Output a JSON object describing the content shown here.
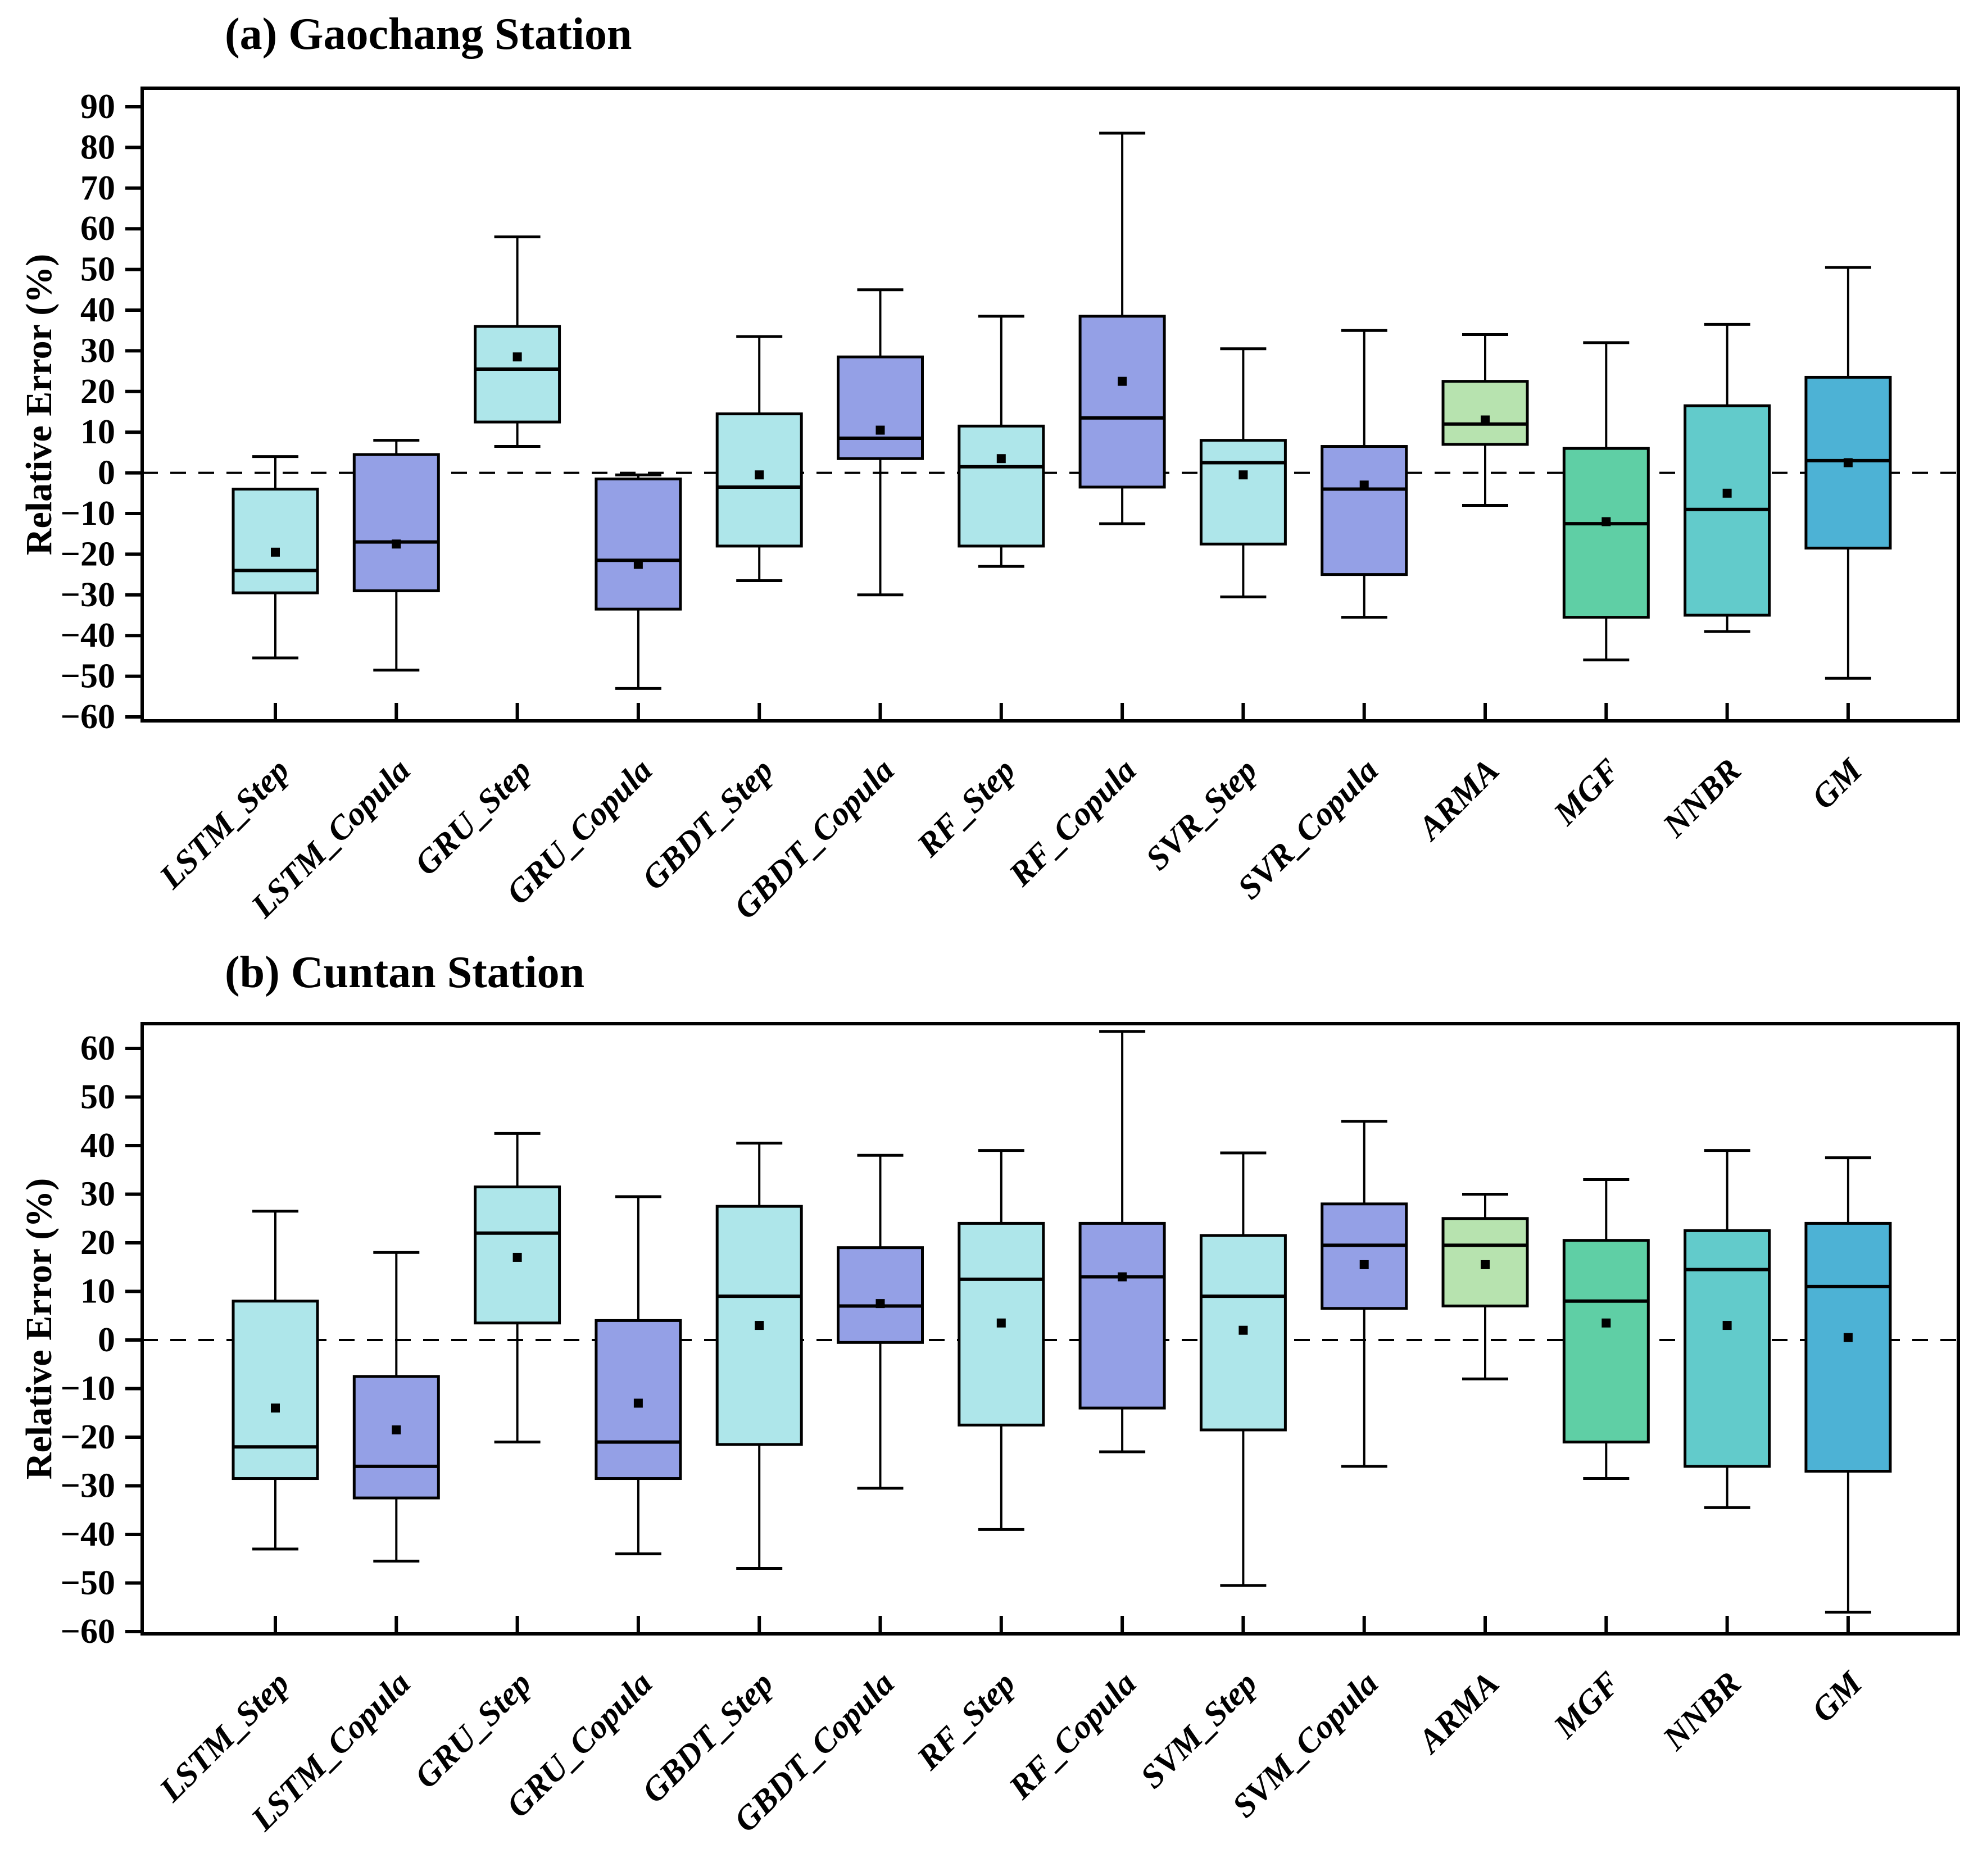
{
  "figure": {
    "background": "#ffffff",
    "axis_color": "#000000",
    "zero_line_style": "dashed",
    "mean_marker": "black-square",
    "panel_a_title": "(a) Gaochang Station",
    "panel_b_title": "(b) Cuntan Station",
    "y_axis_title": "Relative Error (%)"
  },
  "chart_data": [
    {
      "type": "box",
      "title": "(a) Gaochang Station",
      "ylabel": "Relative Error (%)",
      "ylim": [
        -60,
        90
      ],
      "ytick_step": 10,
      "grid": false,
      "zero_line": "dashed",
      "legend": "none",
      "categories": [
        "LSTM_Step",
        "LSTM_Copula",
        "GRU_Step",
        "GRU_Copula",
        "GBDT_Step",
        "GBDT_Copula",
        "RF_Step",
        "RF_Copula",
        "SVR_Step",
        "SVR_Copula",
        "ARMA",
        "MGF",
        "NNBR",
        "GM"
      ],
      "boxes": [
        {
          "label": "LSTM_Step",
          "color": "#AEE6EA",
          "whisker_low": -45.5,
          "q1": -29.5,
          "median": -24,
          "mean": -19.5,
          "q3": -4,
          "whisker_high": 4
        },
        {
          "label": "LSTM_Copula",
          "color": "#94A0E6",
          "whisker_low": -48.5,
          "q1": -29,
          "median": -17,
          "mean": -17.5,
          "q3": 4.5,
          "whisker_high": 8
        },
        {
          "label": "GRU_Step",
          "color": "#AEE6EA",
          "whisker_low": 6.5,
          "q1": 12.5,
          "median": 25.5,
          "mean": 28.5,
          "q3": 36,
          "whisker_high": 58
        },
        {
          "label": "GRU_Copula",
          "color": "#94A0E6",
          "whisker_low": -53,
          "q1": -33.5,
          "median": -21.5,
          "mean": -22.5,
          "q3": -1.5,
          "whisker_high": -0.5
        },
        {
          "label": "GBDT_Step",
          "color": "#AEE6EA",
          "whisker_low": -26.5,
          "q1": -18,
          "median": -3.5,
          "mean": -0.5,
          "q3": 14.5,
          "whisker_high": 33.5
        },
        {
          "label": "GBDT_Copula",
          "color": "#94A0E6",
          "whisker_low": -30,
          "q1": 3.5,
          "median": 8.5,
          "mean": 10.5,
          "q3": 28.5,
          "whisker_high": 45
        },
        {
          "label": "RF_Step",
          "color": "#AEE6EA",
          "whisker_low": -23,
          "q1": -18,
          "median": 1.5,
          "mean": 3.5,
          "q3": 11.5,
          "whisker_high": 38.5
        },
        {
          "label": "RF_Copula",
          "color": "#94A0E6",
          "whisker_low": -12.5,
          "q1": -3.5,
          "median": 13.5,
          "mean": 22.5,
          "q3": 38.5,
          "whisker_high": 83.5
        },
        {
          "label": "SVR_Step",
          "color": "#AEE6EA",
          "whisker_low": -30.5,
          "q1": -17.5,
          "median": 2.5,
          "mean": -0.5,
          "q3": 8,
          "whisker_high": 30.5
        },
        {
          "label": "SVR_Copula",
          "color": "#94A0E6",
          "whisker_low": -35.5,
          "q1": -25,
          "median": -4,
          "mean": -3,
          "q3": 6.5,
          "whisker_high": 35
        },
        {
          "label": "ARMA",
          "color": "#B7E3AF",
          "whisker_low": -8,
          "q1": 7,
          "median": 12,
          "mean": 13,
          "q3": 22.5,
          "whisker_high": 34
        },
        {
          "label": "MGF",
          "color": "#5FCFA5",
          "whisker_low": -46,
          "q1": -35.5,
          "median": -12.5,
          "mean": -12,
          "q3": 6,
          "whisker_high": 32
        },
        {
          "label": "NNBR",
          "color": "#62CBCB",
          "whisker_low": -39,
          "q1": -35,
          "median": -9,
          "mean": -5,
          "q3": 16.5,
          "whisker_high": 36.5
        },
        {
          "label": "GM",
          "color": "#4DB2D5",
          "whisker_low": -50.5,
          "q1": -18.5,
          "median": 3,
          "mean": 2.5,
          "q3": 23.5,
          "whisker_high": 50.5
        }
      ]
    },
    {
      "type": "box",
      "title": "(b) Cuntan Station",
      "ylabel": "Relative Error (%)",
      "ylim": [
        -60,
        60
      ],
      "ytick_step": 10,
      "grid": false,
      "zero_line": "dashed",
      "legend": "none",
      "categories": [
        "LSTM_Step",
        "LSTM_Copula",
        "GRU_Step",
        "GRU_Copula",
        "GBDT_Step",
        "GBDT_Copula",
        "RF_Step",
        "RF_Copula",
        "SVM_Step",
        "SVM_Copula",
        "ARMA",
        "MGF",
        "NNBR",
        "GM"
      ],
      "boxes": [
        {
          "label": "LSTM_Step",
          "color": "#AEE6EA",
          "whisker_low": -43,
          "q1": -28.5,
          "median": -22,
          "mean": -14,
          "q3": 8,
          "whisker_high": 26.5
        },
        {
          "label": "LSTM_Copula",
          "color": "#94A0E6",
          "whisker_low": -45.5,
          "q1": -32.5,
          "median": -26,
          "mean": -18.5,
          "q3": -7.5,
          "whisker_high": 18
        },
        {
          "label": "GRU_Step",
          "color": "#AEE6EA",
          "whisker_low": -21,
          "q1": 3.5,
          "median": 22,
          "mean": 17,
          "q3": 31.5,
          "whisker_high": 42.5
        },
        {
          "label": "GRU_Copula",
          "color": "#94A0E6",
          "whisker_low": -44,
          "q1": -28.5,
          "median": -21,
          "mean": -13,
          "q3": 4,
          "whisker_high": 29.5
        },
        {
          "label": "GBDT_Step",
          "color": "#AEE6EA",
          "whisker_low": -47,
          "q1": -21.5,
          "median": 9,
          "mean": 3,
          "q3": 27.5,
          "whisker_high": 40.5
        },
        {
          "label": "GBDT_Copula",
          "color": "#94A0E6",
          "whisker_low": -30.5,
          "q1": -0.5,
          "median": 7,
          "mean": 7.5,
          "q3": 19,
          "whisker_high": 38
        },
        {
          "label": "RF_Step",
          "color": "#AEE6EA",
          "whisker_low": -39,
          "q1": -17.5,
          "median": 12.5,
          "mean": 3.5,
          "q3": 24,
          "whisker_high": 39
        },
        {
          "label": "RF_Copula",
          "color": "#94A0E6",
          "whisker_low": -23,
          "q1": -14,
          "median": 13,
          "mean": 13,
          "q3": 24,
          "whisker_high": 63.5
        },
        {
          "label": "SVM_Step",
          "color": "#AEE6EA",
          "whisker_low": -50.5,
          "q1": -18.5,
          "median": 9,
          "mean": 2,
          "q3": 21.5,
          "whisker_high": 38.5
        },
        {
          "label": "SVM_Copula",
          "color": "#94A0E6",
          "whisker_low": -26,
          "q1": 6.5,
          "median": 19.5,
          "mean": 15.5,
          "q3": 28,
          "whisker_high": 45
        },
        {
          "label": "ARMA",
          "color": "#B7E3AF",
          "whisker_low": -8,
          "q1": 7,
          "median": 19.5,
          "mean": 15.5,
          "q3": 25,
          "whisker_high": 30
        },
        {
          "label": "MGF",
          "color": "#5FCFA5",
          "whisker_low": -28.5,
          "q1": -21,
          "median": 8,
          "mean": 3.5,
          "q3": 20.5,
          "whisker_high": 33
        },
        {
          "label": "NNBR",
          "color": "#62CBCB",
          "whisker_low": -34.5,
          "q1": -26,
          "median": 14.5,
          "mean": 3,
          "q3": 22.5,
          "whisker_high": 39
        },
        {
          "label": "GM",
          "color": "#4DB2D5",
          "whisker_low": -56,
          "q1": -27,
          "median": 11,
          "mean": 0.5,
          "q3": 24,
          "whisker_high": 37.5
        }
      ]
    }
  ]
}
